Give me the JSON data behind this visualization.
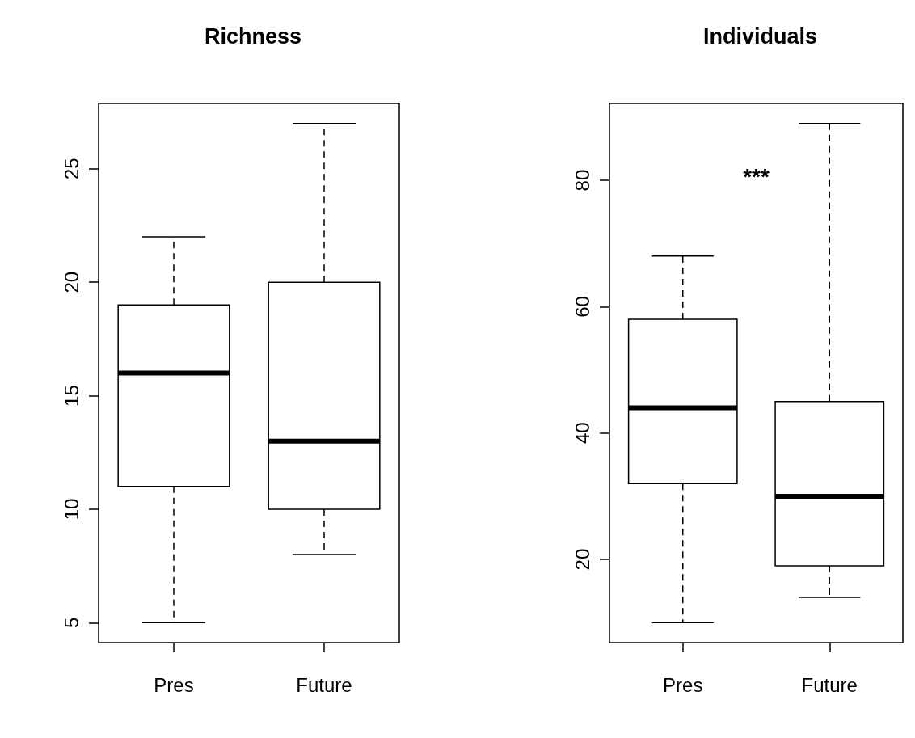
{
  "chart_data": [
    {
      "type": "box",
      "title": "Richness",
      "categories": [
        "Pres",
        "Future"
      ],
      "boxes": [
        {
          "low": 5,
          "q1": 11,
          "median": 16,
          "q3": 19,
          "high": 22
        },
        {
          "low": 8,
          "q1": 10,
          "median": 13,
          "q3": 20,
          "high": 27
        }
      ],
      "ylim": [
        4.12,
        27.88
      ],
      "yticks": [
        5,
        10,
        15,
        20,
        25
      ]
    },
    {
      "type": "box",
      "title": "Individuals",
      "categories": [
        "Pres",
        "Future"
      ],
      "boxes": [
        {
          "low": 10,
          "q1": 32,
          "median": 44,
          "q3": 58,
          "high": 68
        },
        {
          "low": 14,
          "q1": 19,
          "median": 30,
          "q3": 45,
          "high": 89
        }
      ],
      "ylim": [
        6.84,
        92.16
      ],
      "yticks": [
        20,
        40,
        60,
        80
      ],
      "annotations": [
        "***"
      ]
    }
  ]
}
